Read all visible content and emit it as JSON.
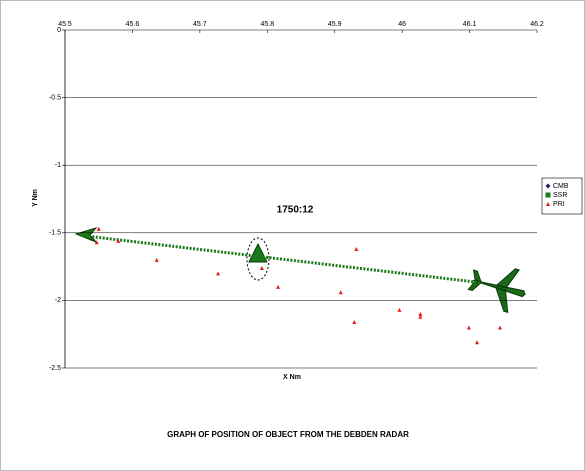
{
  "chart_data": {
    "type": "scatter",
    "title": "GRAPH OF POSITION OF OBJECT FROM THE DEBDEN RADAR",
    "x_label": "X Nm",
    "y_label": "Y Nm",
    "annotation": "1750:12",
    "xlim": [
      45.5,
      46.2
    ],
    "xticks": [
      45.5,
      45.6,
      45.7,
      45.8,
      45.9,
      46,
      46.1,
      46.2
    ],
    "ylim": [
      -2.5,
      0
    ],
    "yticks": [
      0,
      -0.5,
      -1,
      -1.5,
      -2,
      -2.5
    ],
    "grid": true,
    "legend": "right",
    "series": [
      {
        "name": "CMB",
        "color": "#1f1f7a",
        "marker": "diamond",
        "x": [],
        "y": []
      },
      {
        "name": "SSR",
        "color": "#1a7a1a",
        "marker": "line",
        "x": [
          45.525,
          46.119
        ],
        "y": [
          -1.52,
          -1.87
        ]
      },
      {
        "name": "PRI",
        "color": "#e31a1a",
        "marker": "triangle",
        "x": [
          45.55,
          45.547,
          45.579,
          45.636,
          45.727,
          45.792,
          45.816,
          45.932,
          45.909,
          45.929,
          45.996,
          46.027,
          46.027,
          46.099,
          46.111,
          46.145
        ],
        "y": [
          -1.47,
          -1.57,
          -1.56,
          -1.7,
          -1.8,
          -1.76,
          -1.9,
          -1.62,
          -1.94,
          -2.16,
          -2.07,
          -2.1,
          -2.12,
          -2.2,
          -2.31,
          -2.2
        ]
      }
    ]
  }
}
